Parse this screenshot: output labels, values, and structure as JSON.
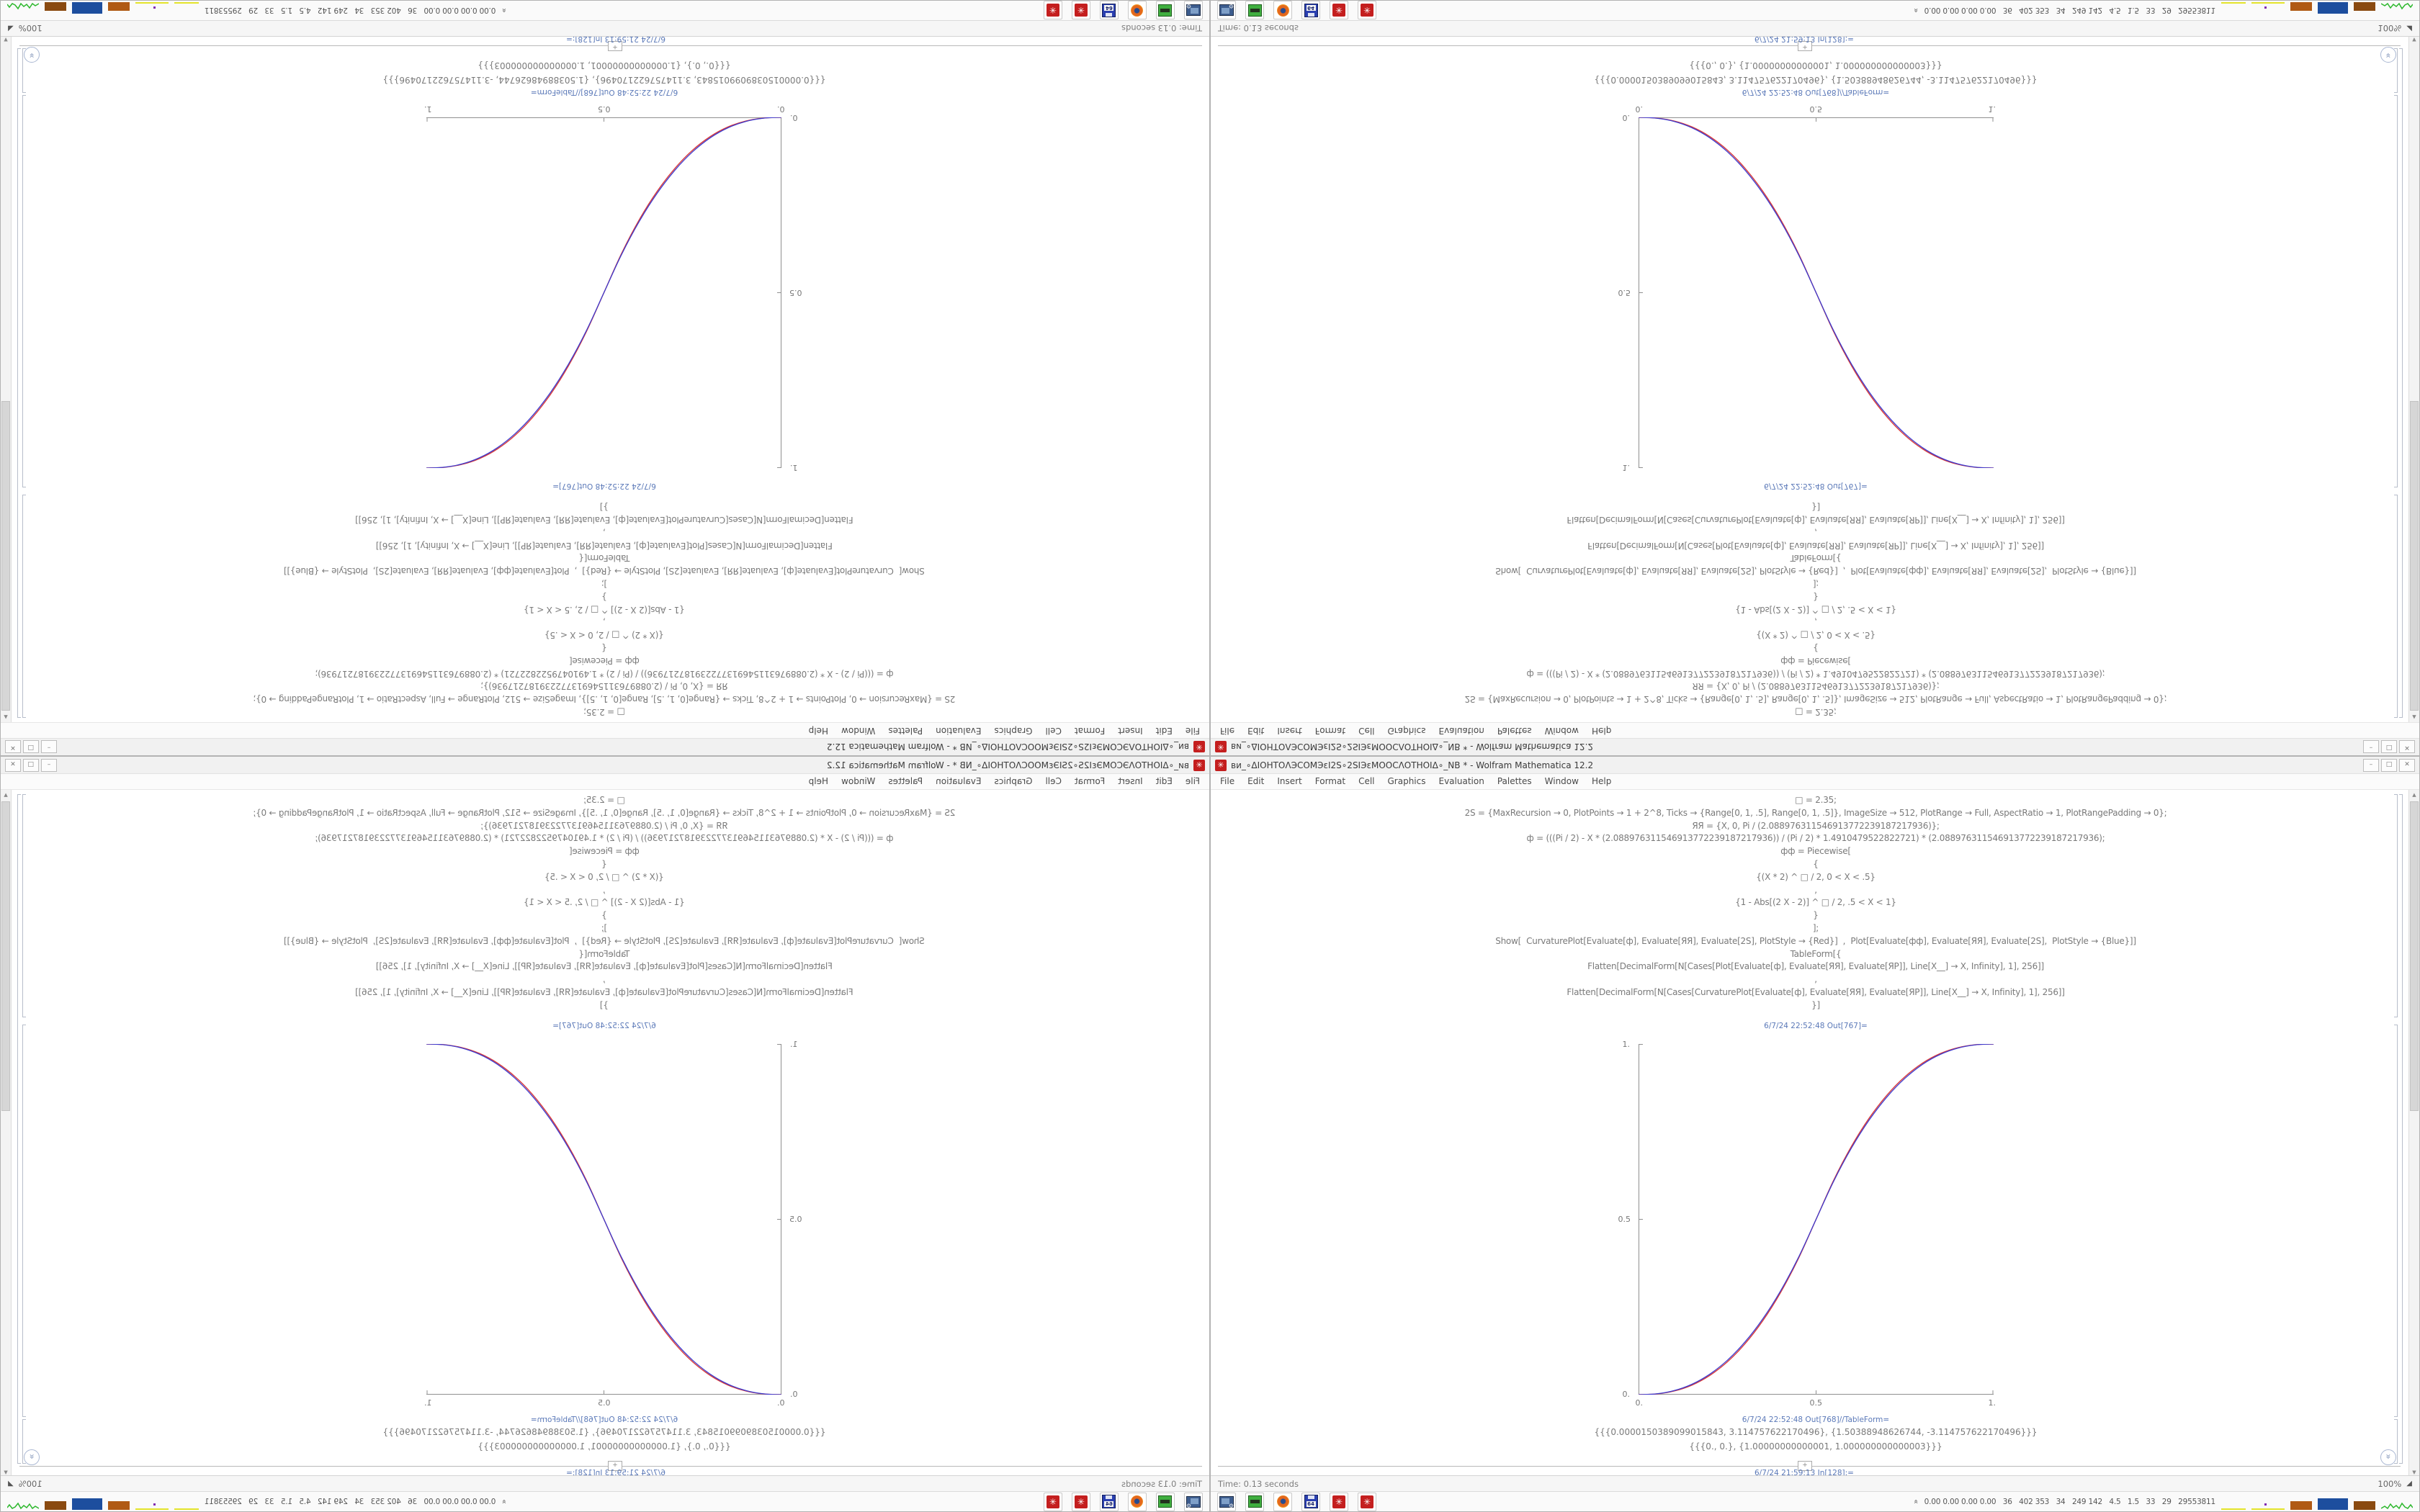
{
  "window": {
    "title": "ви_∘ΔIOHTOΛЭCOMЭεI2S∘2SIЭεMOOCΛOTHOIΔ∘_NB * - Wolfram Mathematica 12.2",
    "app_icon": "✳",
    "menu": [
      "File",
      "Edit",
      "Insert",
      "Format",
      "Cell",
      "Graphics",
      "Evaluation",
      "Palettes",
      "Window",
      "Help"
    ],
    "controls": {
      "minimize": "–",
      "maximize": "□",
      "close": "✕"
    }
  },
  "notebook": {
    "input_lines": [
      "□ = 2.35;",
      "2S = {MaxRecursion → 0, PlotPoints → 1 + 2^8, Ticks → {Range[0, 1, .5], Range[0, 1, .5]}, ImageSize → 512, PlotRange → Full, AspectRatio → 1, PlotRangePadding → 0};",
      "ЯЯ = {X, 0, Pi / (2.088976311546913772239187217936)};",
      "ф = (((Pi / 2) - X * (2.088976311546913772239187217936)) / (Pi / 2) * 1.4910479522822721) * (2.088976311546913772239187217936);",
      "фф = Piecewise[",
      "{",
      "{(X * 2) ^ □ / 2, 0 < X < .5}",
      ",",
      "{1 - Abs[(2 X - 2)] ^ □ / 2, .5 < X < 1}",
      "}",
      "];",
      "Show[  CurvaturePlot[Evaluate[ф], Evaluate[ЯЯ], Evaluate[2S], PlotStyle → {Red}]  ,  Plot[Evaluate[фф], Evaluate[ЯЯ], Evaluate[2S],  PlotStyle → {Blue}]]",
      "TableForm[{",
      "Flatten[DecimalForm[N[Cases[Plot[Evaluate[ф], Evaluate[ЯЯ], Evaluate[ЯР]], Line[X__] → X, Infinity], 1], 256]]",
      ",",
      "Flatten[DecimalForm[N[Cases[CurvaturePlot[Evaluate[ф], Evaluate[ЯЯ], Evaluate[ЯР]], Line[X__] → X, Infinity], 1], 256]]",
      "}]"
    ],
    "out_plot_label": "6/7/24 22:52:48 Out[767]=",
    "out_table_label": "6/7/24 22:52:48 Out[768]//TableForm=",
    "table_rows": [
      "{{{0.0000150389099015843, 3.114757622170496}, {1.50388948626744, -3.114757622170496}}}",
      "{{{0., 0.}, {1.00000000000001, 1.000000000000003}}}"
    ],
    "insert_plus": "+",
    "next_cell_label": "6/7/24 21:59:13 In[128]:=",
    "scroll_bottom_glyph": "«",
    "scrollbar": {
      "up": "▲",
      "down": "▼"
    }
  },
  "chart_data": {
    "type": "line",
    "title": "",
    "xlabel": "",
    "ylabel": "",
    "xlim": [
      0,
      1
    ],
    "ylim": [
      0,
      1
    ],
    "grid": false,
    "legend": "none",
    "x_tick_labels": [
      "0.",
      "0.5",
      "1."
    ],
    "y_tick_labels": [
      "1.",
      "0.5",
      "0."
    ],
    "x": [
      0,
      0.05,
      0.1,
      0.15,
      0.2,
      0.25,
      0.3,
      0.35,
      0.4,
      0.45,
      0.5,
      0.55,
      0.6,
      0.65,
      0.7,
      0.75,
      0.8,
      0.85,
      0.9,
      0.95,
      1
    ],
    "series": [
      {
        "name": "CurvaturePlot (Red)",
        "color": "#d93a3a",
        "values": [
          0,
          0.0019,
          0.0102,
          0.0271,
          0.0544,
          0.0934,
          0.1453,
          0.2109,
          0.2913,
          0.3875,
          0.5,
          0.6125,
          0.7087,
          0.7891,
          0.8547,
          0.9066,
          0.9456,
          0.9729,
          0.9898,
          0.9981,
          1
        ]
      },
      {
        "name": "Plot (Blue)",
        "color": "#3b3bd0",
        "values": [
          0,
          0.0022,
          0.0114,
          0.0295,
          0.058,
          0.098,
          0.1506,
          0.2162,
          0.2959,
          0.3903,
          0.5,
          0.6097,
          0.7041,
          0.7838,
          0.8494,
          0.902,
          0.942,
          0.9705,
          0.9886,
          0.9978,
          1
        ]
      }
    ]
  },
  "status_bar": {
    "left": "Time: 0.13 seconds",
    "zoom": "100%",
    "zoom_icon": "◢"
  },
  "taskbar": {
    "items": [
      {
        "icon": "system-monitor-icon"
      },
      {
        "icon": "screenshot-tool-icon"
      },
      {
        "icon": "firefox-icon"
      },
      {
        "icon": "floppy-64-icon",
        "label": "64"
      },
      {
        "icon": "mathematica-spikey-icon",
        "glyph": "✳"
      },
      {
        "icon": "mathematica-spikey-icon",
        "glyph": "✳"
      }
    ],
    "tray_chevron": "«",
    "tray_values": "0.00 0.00 0.00 0.00   36   402 353   34   249 142   4.5   1.5   33   29   29553811"
  }
}
